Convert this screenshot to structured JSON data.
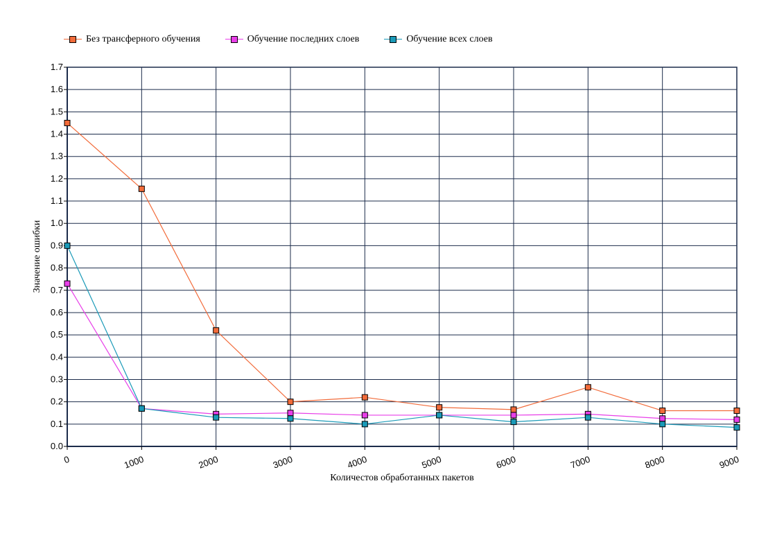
{
  "chart_data": {
    "type": "line",
    "title": "",
    "xlabel": "Количестов обработанных пакетов",
    "ylabel": "Значение ошибки",
    "x": [
      0,
      1000,
      2000,
      3000,
      4000,
      5000,
      6000,
      7000,
      8000,
      9000
    ],
    "xlim": [
      0,
      9000
    ],
    "ylim": [
      0,
      1.7
    ],
    "yticks": [
      "0.0",
      "0.1",
      "0.2",
      "0.3",
      "0.4",
      "0.5",
      "0.6",
      "0.7",
      "0.8",
      "0.9",
      "1.0",
      "1.1",
      "1.2",
      "1.3",
      "1.4",
      "1.5",
      "1.6",
      "1.7"
    ],
    "xticks": [
      "0",
      "1000",
      "2000",
      "3000",
      "4000",
      "5000",
      "6000",
      "7000",
      "8000",
      "9000"
    ],
    "grid": true,
    "legend_position": "top-left",
    "series": [
      {
        "name": "Без трансферного обучения",
        "color": "#f26b3a",
        "values": [
          1.45,
          1.155,
          0.52,
          0.2,
          0.22,
          0.175,
          0.165,
          0.265,
          0.16,
          0.16
        ]
      },
      {
        "name": "Обучение последних слоев",
        "color": "#e83ee8",
        "values": [
          0.73,
          0.17,
          0.145,
          0.15,
          0.14,
          0.14,
          0.14,
          0.145,
          0.125,
          0.12
        ]
      },
      {
        "name": "Обучение всех слоев",
        "color": "#1a9ab8",
        "values": [
          0.9,
          0.17,
          0.13,
          0.125,
          0.1,
          0.14,
          0.11,
          0.13,
          0.1,
          0.085
        ]
      }
    ],
    "grid_color": "#1b2b4a"
  }
}
